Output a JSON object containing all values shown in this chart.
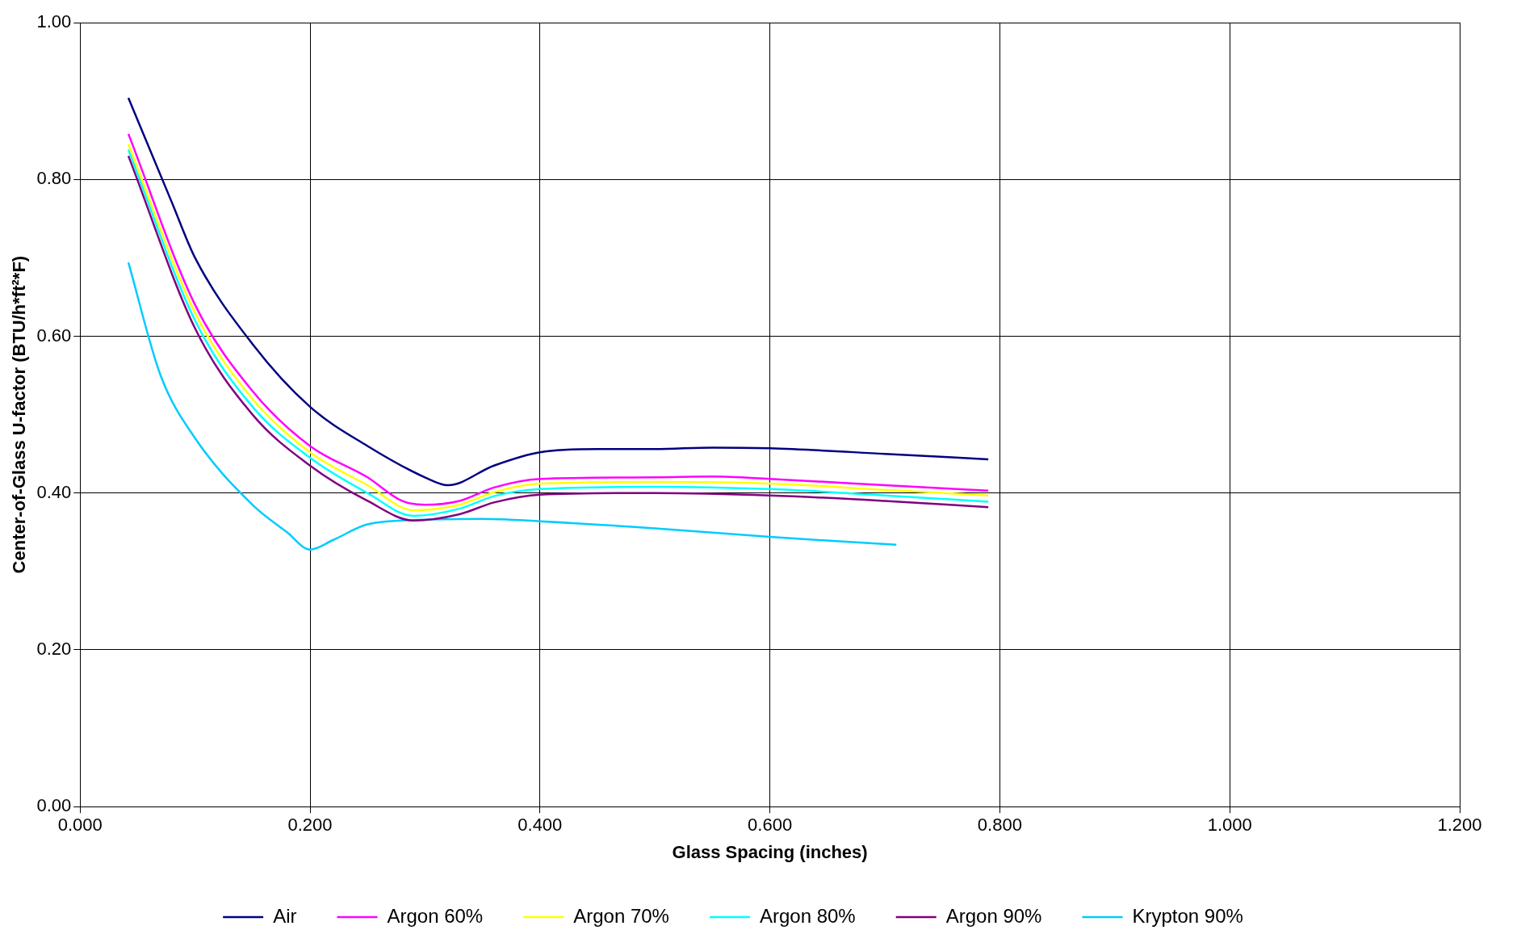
{
  "chart_data": {
    "type": "line",
    "xlabel": "Glass Spacing (inches)",
    "ylabel": "Center-of-Glass U-factor (BTU/h*ft²*F)",
    "xlim": [
      0,
      1.2
    ],
    "xticks": [
      {
        "value": 0,
        "label": "0.000"
      },
      {
        "value": 0.2,
        "label": "0.200"
      },
      {
        "value": 0.4,
        "label": "0.400"
      },
      {
        "value": 0.6,
        "label": "0.600"
      },
      {
        "value": 0.8,
        "label": "0.800"
      },
      {
        "value": 1,
        "label": "1.000"
      },
      {
        "value": 1.2,
        "label": "1.200"
      }
    ],
    "ylim": [
      0,
      1
    ],
    "yticks": [
      {
        "value": 0,
        "label": "0.00"
      },
      {
        "value": 0.2,
        "label": "0.20"
      },
      {
        "value": 0.4,
        "label": "0.40"
      },
      {
        "value": 0.6,
        "label": "0.60"
      },
      {
        "value": 0.8,
        "label": "0.80"
      },
      {
        "value": 1,
        "label": "1.00"
      }
    ],
    "grid": true,
    "legend": "bottom",
    "marker": "none",
    "line_style": "solid",
    "series": [
      {
        "name": "Air",
        "color": "#000080",
        "x": [
          0.042,
          0.08,
          0.1,
          0.15,
          0.2,
          0.25,
          0.3,
          0.32,
          0.36,
          0.4,
          0.45,
          0.5,
          0.55,
          0.6,
          0.7,
          0.79
        ],
        "values": [
          0.904,
          0.77,
          0.7,
          0.59,
          0.51,
          0.46,
          0.42,
          0.41,
          0.435,
          0.452,
          0.456,
          0.456,
          0.458,
          0.457,
          0.45,
          0.443
        ]
      },
      {
        "name": "Argon 60%",
        "color": "#ff00ff",
        "x": [
          0.042,
          0.1,
          0.15,
          0.2,
          0.25,
          0.28,
          0.3,
          0.33,
          0.36,
          0.4,
          0.5,
          0.55,
          0.6,
          0.7,
          0.79
        ],
        "values": [
          0.858,
          0.64,
          0.53,
          0.46,
          0.42,
          0.39,
          0.385,
          0.39,
          0.407,
          0.418,
          0.42,
          0.421,
          0.418,
          0.41,
          0.403
        ]
      },
      {
        "name": "Argon 70%",
        "color": "#ffff00",
        "x": [
          0.042,
          0.1,
          0.15,
          0.2,
          0.25,
          0.29,
          0.33,
          0.36,
          0.4,
          0.5,
          0.6,
          0.7,
          0.79
        ],
        "values": [
          0.845,
          0.63,
          0.52,
          0.452,
          0.41,
          0.378,
          0.385,
          0.401,
          0.412,
          0.414,
          0.412,
          0.404,
          0.397
        ]
      },
      {
        "name": "Argon 80%",
        "color": "#00ffff",
        "x": [
          0.042,
          0.1,
          0.15,
          0.2,
          0.25,
          0.29,
          0.33,
          0.36,
          0.4,
          0.5,
          0.6,
          0.7,
          0.79
        ],
        "values": [
          0.838,
          0.62,
          0.51,
          0.445,
          0.4,
          0.371,
          0.38,
          0.396,
          0.405,
          0.408,
          0.405,
          0.397,
          0.389
        ]
      },
      {
        "name": "Argon 90%",
        "color": "#800080",
        "x": [
          0.042,
          0.1,
          0.15,
          0.2,
          0.25,
          0.29,
          0.33,
          0.36,
          0.4,
          0.5,
          0.6,
          0.7,
          0.79
        ],
        "values": [
          0.83,
          0.61,
          0.5,
          0.435,
          0.39,
          0.365,
          0.373,
          0.388,
          0.398,
          0.4,
          0.397,
          0.39,
          0.382
        ]
      },
      {
        "name": "Krypton 90%",
        "color": "#00ccff",
        "x": [
          0.042,
          0.07,
          0.1,
          0.15,
          0.18,
          0.2,
          0.22,
          0.25,
          0.3,
          0.35,
          0.4,
          0.5,
          0.6,
          0.71
        ],
        "values": [
          0.694,
          0.55,
          0.47,
          0.385,
          0.35,
          0.328,
          0.34,
          0.36,
          0.366,
          0.367,
          0.364,
          0.355,
          0.344,
          0.334
        ]
      }
    ]
  }
}
